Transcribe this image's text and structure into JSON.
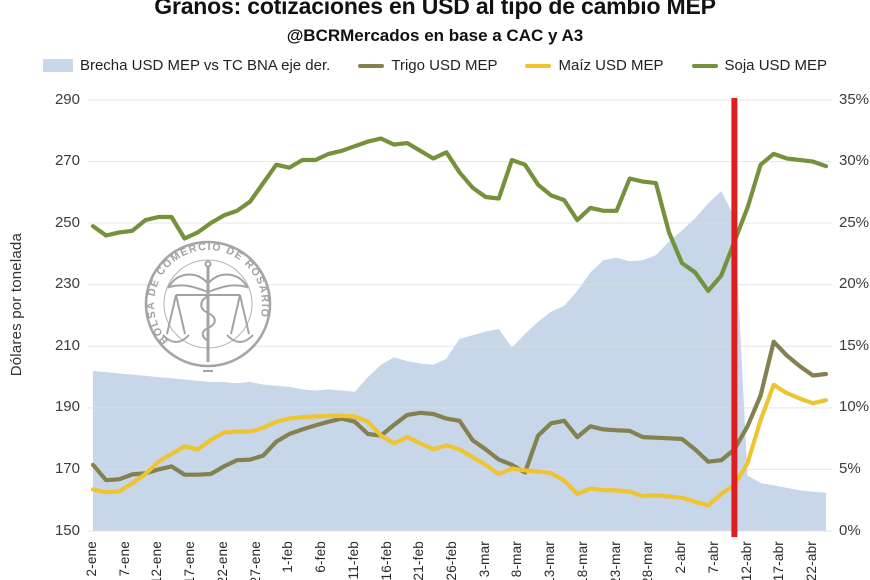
{
  "header": {
    "title": "Granos: cotizaciones en USD al tipo de cambio MEP",
    "subtitle": "@BCRMercados en base a CAC y A3"
  },
  "watermark": {
    "text": "BOLSA DE COMERCIO DE ROSARIO"
  },
  "colors": {
    "brecha_area": "#c9d7eb",
    "trigo": "#85804f",
    "maiz": "#eec431",
    "soja": "#75913c",
    "reference_line": "#dd1f1f",
    "grid": "#dedede",
    "axis_text": "#3c3c3c"
  },
  "chart_data": {
    "type": "combo",
    "title": "Granos: cotizaciones en USD al tipo de cambio MEP",
    "subtitle": "@BCRMercados en base a CAC y A3",
    "sample_step_days": 2,
    "x_start_label": "2-ene",
    "x_tick_days": [
      0,
      5,
      10,
      15,
      20,
      25,
      30,
      35,
      40,
      45,
      50,
      55,
      60,
      65,
      70,
      75,
      80,
      85,
      90,
      95,
      100,
      105,
      110
    ],
    "x_tick_labels": [
      "2-ene",
      "7-ene",
      "12-ene",
      "17-ene",
      "22-ene",
      "27-ene",
      "1-feb",
      "6-feb",
      "11-feb",
      "16-feb",
      "21-feb",
      "26-feb",
      "3-mar",
      "8-mar",
      "13-mar",
      "18-mar",
      "23-mar",
      "28-mar",
      "2-abr",
      "7-abr",
      "12-abr",
      "17-abr",
      "22-abr"
    ],
    "left_axis": {
      "label": "Dólares por tonelada",
      "min": 150,
      "max": 290,
      "ticks": [
        "290",
        "270",
        "250",
        "230",
        "210",
        "190",
        "170",
        "150"
      ]
    },
    "right_axis": {
      "min": 0,
      "max": 35,
      "ticks": [
        "35%",
        "30%",
        "25%",
        "20%",
        "15%",
        "10%",
        "5%",
        "0%"
      ]
    },
    "grid": true,
    "legend_position": "top",
    "series": [
      {
        "name": "Brecha USD MEP vs TC BNA eje der.",
        "type": "area",
        "axis": "right",
        "color": "#c9d7eb",
        "values": [
          13,
          12.9,
          12.8,
          12.7,
          12.6,
          12.5,
          12.4,
          12.3,
          12.2,
          12.1,
          12.1,
          12,
          12.1,
          11.9,
          11.8,
          11.7,
          11.5,
          11.4,
          11.5,
          11.4,
          11.3,
          12.5,
          13.5,
          14.1,
          13.8,
          13.6,
          13.5,
          14,
          15.6,
          15.9,
          16.2,
          16.4,
          14.9,
          16,
          17,
          17.8,
          18.3,
          19.5,
          21,
          22,
          22.2,
          21.9,
          22,
          22.4,
          23.5,
          24.4,
          25.4,
          26.6,
          27.6,
          25.5,
          4.5,
          3.9,
          3.7,
          3.5,
          3.3,
          3.2,
          3.1
        ]
      },
      {
        "name": "Trigo USD MEP",
        "type": "line",
        "axis": "left",
        "color": "#85804f",
        "values": [
          171.5,
          166.5,
          166.8,
          168.4,
          168.7,
          170,
          171,
          168.3,
          168.3,
          168.5,
          171,
          173,
          173.2,
          174.5,
          179,
          181.5,
          183,
          184.3,
          185.5,
          186.5,
          185.5,
          181.5,
          181,
          184.5,
          187.7,
          188.4,
          188,
          186.5,
          185.8,
          179.5,
          176.5,
          173.2,
          171.5,
          169,
          181,
          185,
          185.8,
          180.5,
          184,
          183,
          182.7,
          182.5,
          180.5,
          180.3,
          180.1,
          179.9,
          176.5,
          172.5,
          173,
          176.5,
          184,
          194,
          211.5,
          207,
          203.5,
          200.5,
          201
        ]
      },
      {
        "name": "Maíz USD MEP",
        "type": "line",
        "axis": "left",
        "color": "#eec431",
        "values": [
          163.5,
          162.6,
          162.9,
          165.5,
          168.5,
          172.5,
          175,
          177.5,
          176.5,
          179.5,
          182,
          182.3,
          182.3,
          183.5,
          185.5,
          186.5,
          187,
          187.2,
          187.4,
          187.4,
          187.2,
          185.5,
          181,
          178.5,
          180.5,
          178.5,
          176.5,
          177.8,
          176.5,
          174,
          171.5,
          168.5,
          170.3,
          169.7,
          169.3,
          168.8,
          166.4,
          162,
          163.8,
          163.3,
          163.2,
          162.8,
          161.3,
          161.6,
          161.2,
          160.8,
          159.5,
          158.3,
          162,
          165,
          172,
          186,
          197.5,
          194.8,
          193,
          191.5,
          192.5
        ]
      },
      {
        "name": "Soja USD MEP",
        "type": "line",
        "axis": "left",
        "color": "#75913c",
        "values": [
          249,
          246,
          247,
          247.5,
          251,
          252,
          252,
          245,
          247,
          250,
          252.5,
          254,
          257,
          263,
          269,
          268,
          270.5,
          270.5,
          272.5,
          273.5,
          275,
          276.5,
          277.5,
          275.5,
          276,
          273.5,
          271,
          273,
          266.5,
          261.5,
          258.5,
          258,
          270.5,
          269,
          262.5,
          259,
          257.5,
          251,
          255,
          254,
          254,
          264.5,
          263.5,
          263,
          247,
          237,
          234,
          228,
          233,
          244,
          255,
          269,
          272.5,
          271,
          270.5,
          270,
          268.5
        ]
      }
    ],
    "reference_line": {
      "day": 98,
      "approx_date": "11-abr",
      "color": "#dd1f1f"
    }
  }
}
